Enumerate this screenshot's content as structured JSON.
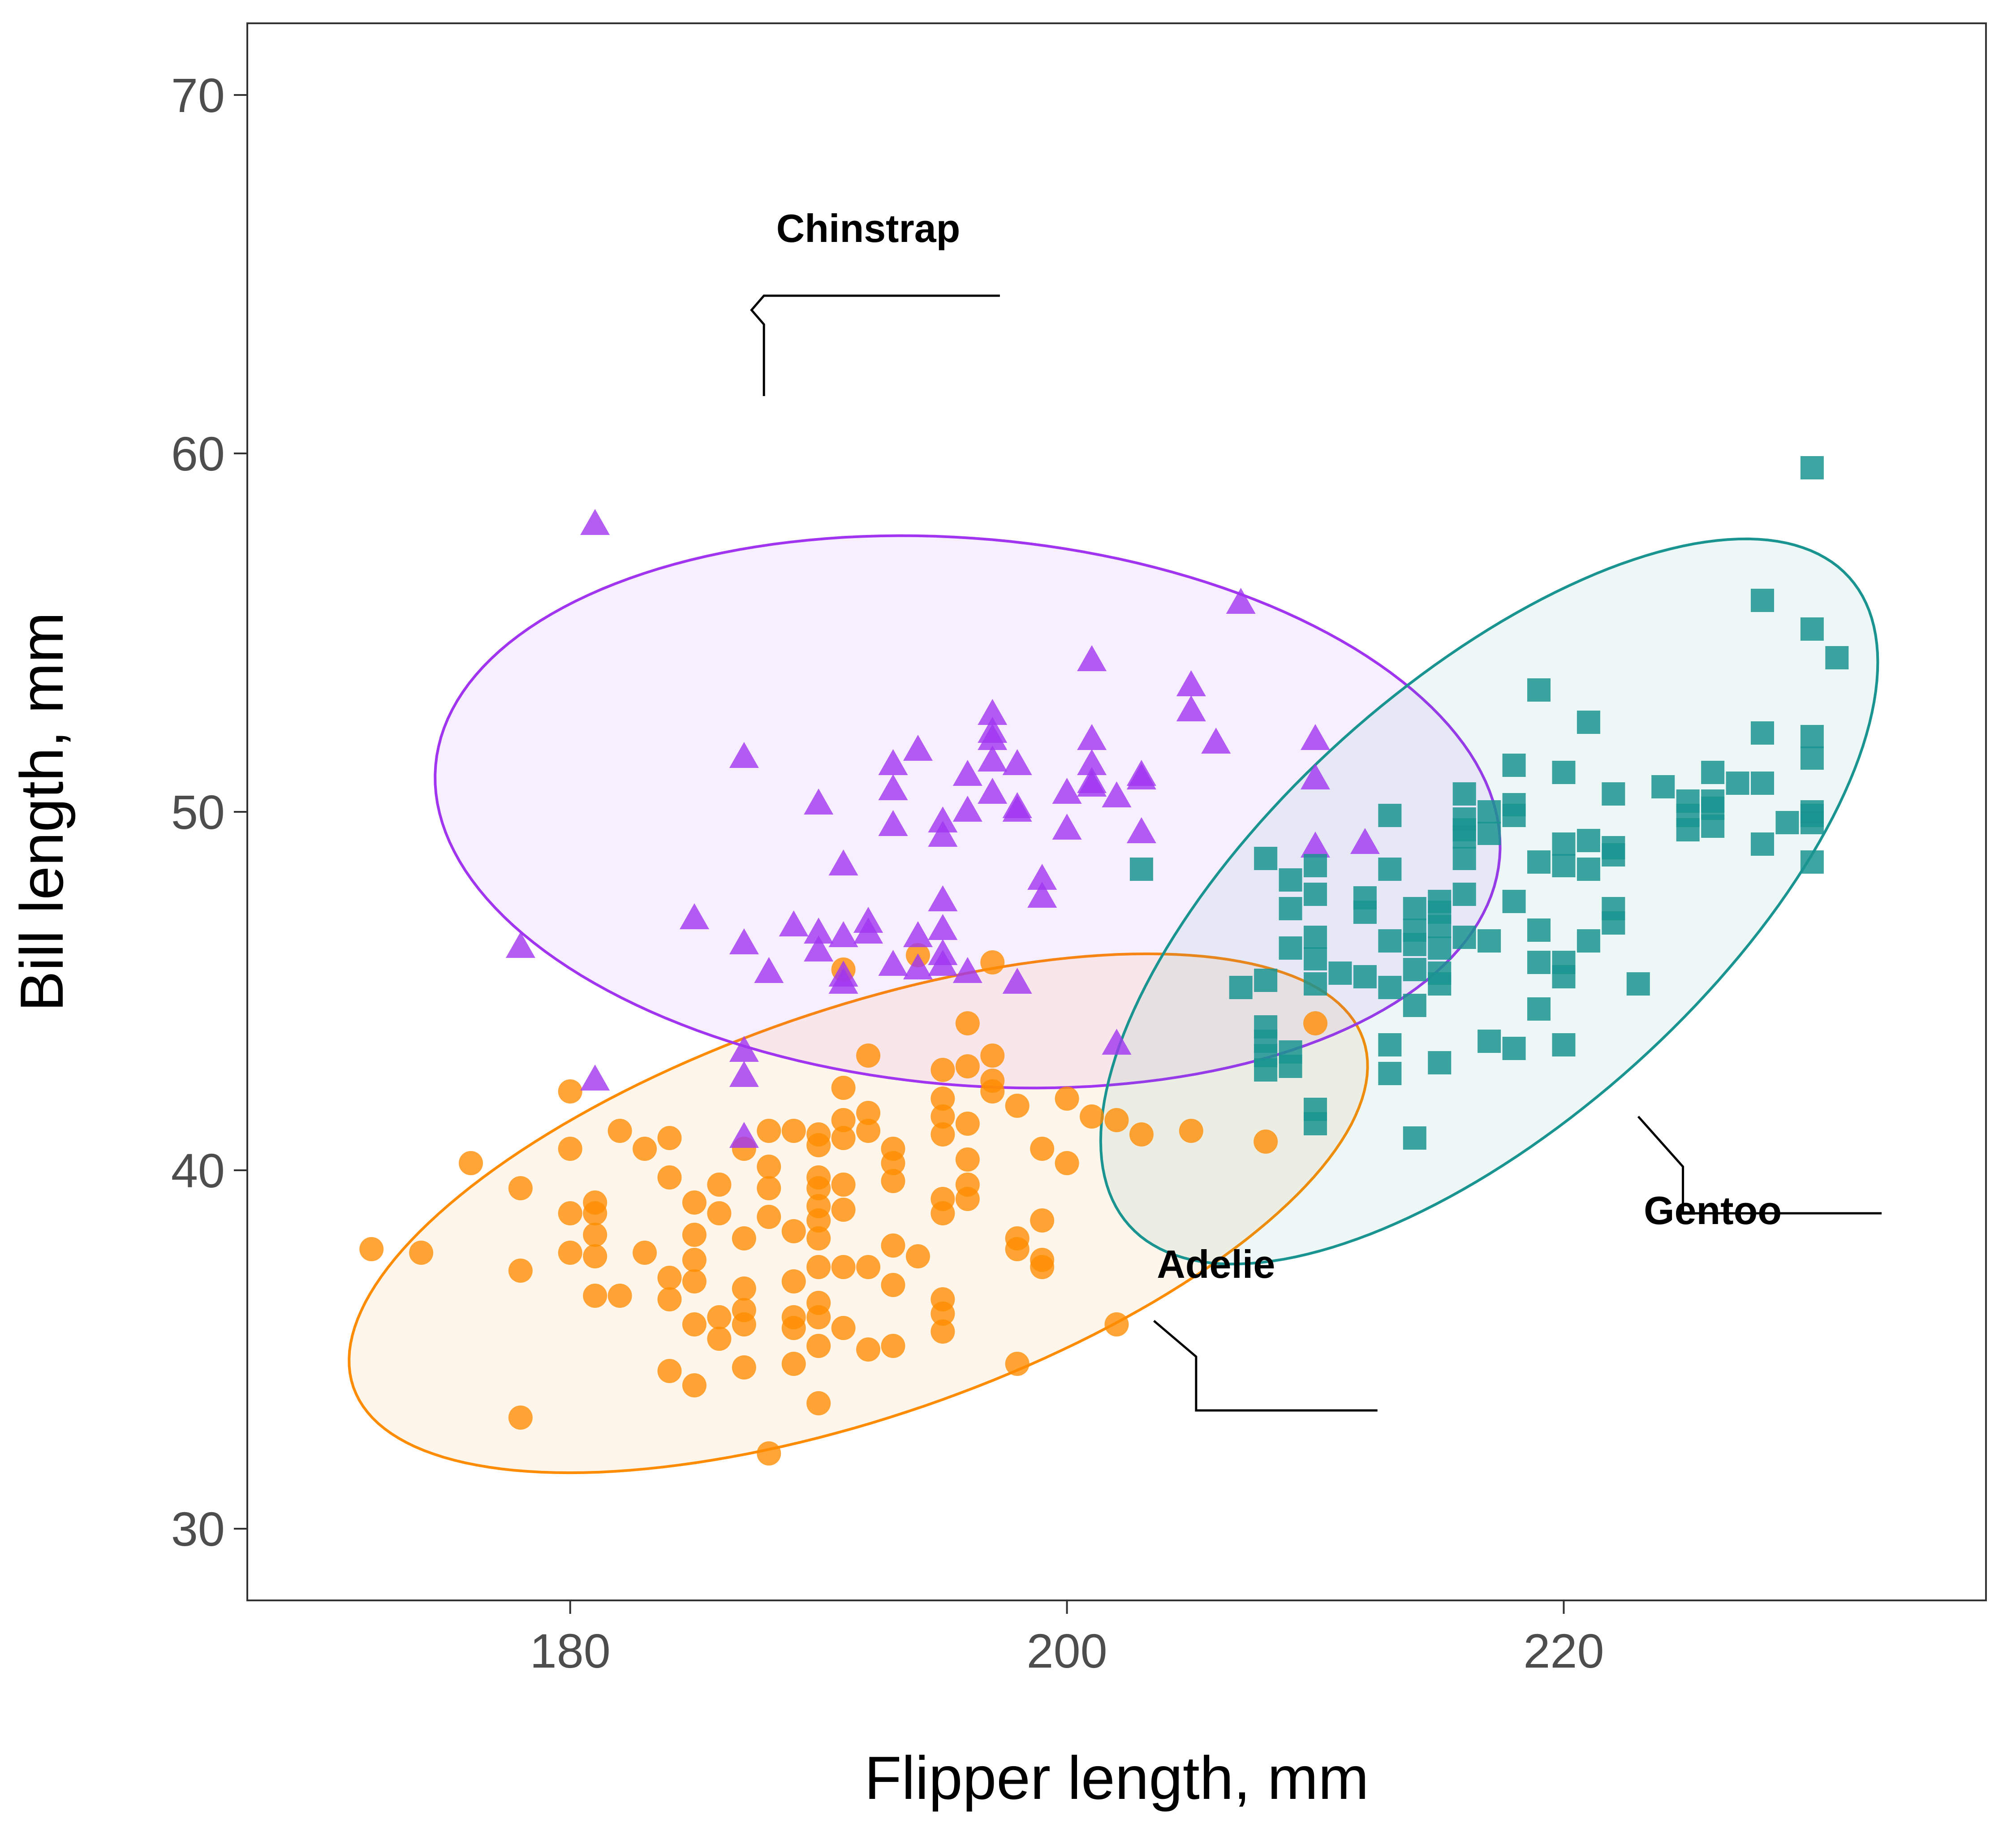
{
  "chart_data": {
    "type": "scatter",
    "title": "",
    "xlabel": "Flipper length, mm",
    "ylabel": "Bill length, mm",
    "xlim": [
      167,
      237
    ],
    "ylim": [
      28,
      72
    ],
    "xticks": [
      180,
      200,
      220
    ],
    "yticks": [
      30,
      40,
      50,
      60,
      70
    ],
    "grid": false,
    "legend": "none",
    "series": [
      {
        "name": "Adelie",
        "color": "#ff8c00",
        "marker": "circle",
        "ellipse": {
          "cx": 191.6,
          "cy": 38.8,
          "rx": 21.5,
          "ry": 8.2,
          "angle_deg": 19
        },
        "label_point": [
          206,
          37.0
        ],
        "label_leader": [
          [
            203.5,
            35.8
          ],
          [
            205.2,
            34.8
          ],
          [
            205.2,
            33.3
          ],
          [
            212.5,
            33.3
          ]
        ],
        "points": [
          [
            172,
            37.8
          ],
          [
            174,
            37.7
          ],
          [
            176,
            40.2
          ],
          [
            178,
            39.5
          ],
          [
            178,
            37.2
          ],
          [
            178,
            33.1
          ],
          [
            180,
            42.2
          ],
          [
            180,
            40.6
          ],
          [
            180,
            38.8
          ],
          [
            180,
            37.7
          ],
          [
            181,
            39.1
          ],
          [
            181,
            38.8
          ],
          [
            181,
            38.2
          ],
          [
            181,
            37.6
          ],
          [
            181,
            36.5
          ],
          [
            182,
            41.1
          ],
          [
            182,
            36.5
          ],
          [
            183,
            40.6
          ],
          [
            183,
            37.7
          ],
          [
            184,
            40.9
          ],
          [
            184,
            39.8
          ],
          [
            184,
            37.0
          ],
          [
            184,
            36.4
          ],
          [
            184,
            34.4
          ],
          [
            185,
            39.1
          ],
          [
            185,
            38.2
          ],
          [
            185,
            37.5
          ],
          [
            185,
            36.9
          ],
          [
            185,
            35.7
          ],
          [
            185,
            34.0
          ],
          [
            186,
            39.6
          ],
          [
            186,
            38.8
          ],
          [
            186,
            35.9
          ],
          [
            186,
            35.3
          ],
          [
            187,
            40.6
          ],
          [
            187,
            38.1
          ],
          [
            187,
            36.7
          ],
          [
            187,
            36.1
          ],
          [
            187,
            35.7
          ],
          [
            187,
            34.5
          ],
          [
            188,
            41.1
          ],
          [
            188,
            40.1
          ],
          [
            188,
            39.5
          ],
          [
            188,
            38.7
          ],
          [
            188,
            32.1
          ],
          [
            189,
            41.1
          ],
          [
            189,
            38.3
          ],
          [
            189,
            36.9
          ],
          [
            189,
            35.9
          ],
          [
            189,
            35.6
          ],
          [
            189,
            34.6
          ],
          [
            190,
            41.0
          ],
          [
            190,
            40.7
          ],
          [
            190,
            39.8
          ],
          [
            190,
            39.5
          ],
          [
            190,
            39.0
          ],
          [
            190,
            38.6
          ],
          [
            190,
            38.1
          ],
          [
            190,
            37.3
          ],
          [
            190,
            36.3
          ],
          [
            190,
            35.9
          ],
          [
            190,
            35.1
          ],
          [
            190,
            33.5
          ],
          [
            191,
            45.6
          ],
          [
            191,
            42.3
          ],
          [
            191,
            41.4
          ],
          [
            191,
            40.9
          ],
          [
            191,
            39.6
          ],
          [
            191,
            38.9
          ],
          [
            191,
            37.3
          ],
          [
            191,
            35.6
          ],
          [
            192,
            43.2
          ],
          [
            192,
            41.6
          ],
          [
            192,
            41.1
          ],
          [
            192,
            37.3
          ],
          [
            192,
            35.0
          ],
          [
            193,
            40.6
          ],
          [
            193,
            40.2
          ],
          [
            193,
            39.7
          ],
          [
            193,
            37.9
          ],
          [
            193,
            36.8
          ],
          [
            193,
            35.1
          ],
          [
            194,
            46.0
          ],
          [
            194,
            37.6
          ],
          [
            195,
            42.8
          ],
          [
            195,
            42.0
          ],
          [
            195,
            41.5
          ],
          [
            195,
            41.0
          ],
          [
            195,
            39.2
          ],
          [
            195,
            38.8
          ],
          [
            195,
            36.4
          ],
          [
            195,
            36.0
          ],
          [
            195,
            35.5
          ],
          [
            196,
            44.1
          ],
          [
            196,
            42.9
          ],
          [
            196,
            41.3
          ],
          [
            196,
            40.3
          ],
          [
            196,
            39.6
          ],
          [
            196,
            39.2
          ],
          [
            197,
            45.8
          ],
          [
            197,
            43.2
          ],
          [
            197,
            42.5
          ],
          [
            197,
            42.2
          ],
          [
            198,
            41.8
          ],
          [
            198,
            38.1
          ],
          [
            198,
            37.8
          ],
          [
            198,
            34.6
          ],
          [
            199,
            40.6
          ],
          [
            199,
            38.6
          ],
          [
            199,
            37.5
          ],
          [
            199,
            37.3
          ],
          [
            200,
            42.0
          ],
          [
            200,
            40.2
          ],
          [
            201,
            41.5
          ],
          [
            202,
            41.4
          ],
          [
            202,
            35.7
          ],
          [
            203,
            41.0
          ],
          [
            205,
            41.1
          ],
          [
            208,
            40.8
          ],
          [
            210,
            44.1
          ]
        ]
      },
      {
        "name": "Chinstrap",
        "color": "#a034f0",
        "marker": "triangle",
        "ellipse": {
          "cx": 196.0,
          "cy": 50.0,
          "rx": 21.5,
          "ry": 11.0,
          "angle_deg": -5
        },
        "label_point": [
          192.0,
          65.9
        ],
        "label_leader": [
          [
            197.3,
            64.4
          ],
          [
            187.8,
            64.4
          ],
          [
            187.3,
            64.0
          ],
          [
            187.8,
            63.6
          ],
          [
            187.8,
            61.6
          ]
        ],
        "points": [
          [
            178,
            46.2
          ],
          [
            181,
            58.0
          ],
          [
            181,
            42.5
          ],
          [
            185,
            47.0
          ],
          [
            187,
            51.5
          ],
          [
            187,
            46.3
          ],
          [
            187,
            43.3
          ],
          [
            187,
            42.6
          ],
          [
            187,
            40.9
          ],
          [
            188,
            45.5
          ],
          [
            189,
            46.8
          ],
          [
            190,
            50.2
          ],
          [
            190,
            46.6
          ],
          [
            190,
            46.1
          ],
          [
            191,
            48.5
          ],
          [
            191,
            46.5
          ],
          [
            191,
            45.4
          ],
          [
            191,
            45.2
          ],
          [
            192,
            46.9
          ],
          [
            192,
            46.6
          ],
          [
            193,
            51.3
          ],
          [
            193,
            50.6
          ],
          [
            193,
            49.6
          ],
          [
            193,
            45.7
          ],
          [
            194,
            51.7
          ],
          [
            194,
            46.5
          ],
          [
            194,
            45.6
          ],
          [
            195,
            49.7
          ],
          [
            195,
            49.3
          ],
          [
            195,
            47.5
          ],
          [
            195,
            46.7
          ],
          [
            195,
            46.0
          ],
          [
            195,
            45.7
          ],
          [
            196,
            51.0
          ],
          [
            196,
            50.0
          ],
          [
            196,
            45.5
          ],
          [
            197,
            52.7
          ],
          [
            197,
            52.2
          ],
          [
            197,
            52.0
          ],
          [
            197,
            51.4
          ],
          [
            197,
            50.5
          ],
          [
            198,
            51.3
          ],
          [
            198,
            50.1
          ],
          [
            198,
            50.0
          ],
          [
            198,
            45.2
          ],
          [
            199,
            48.1
          ],
          [
            199,
            47.6
          ],
          [
            200,
            50.5
          ],
          [
            200,
            49.5
          ],
          [
            201,
            54.2
          ],
          [
            201,
            52.0
          ],
          [
            201,
            51.3
          ],
          [
            201,
            50.8
          ],
          [
            201,
            50.7
          ],
          [
            202,
            50.4
          ],
          [
            202,
            43.5
          ],
          [
            203,
            51.0
          ],
          [
            203,
            50.9
          ],
          [
            203,
            49.4
          ],
          [
            205,
            53.5
          ],
          [
            205,
            52.8
          ],
          [
            206,
            51.9
          ],
          [
            207,
            55.8
          ],
          [
            210,
            52.0
          ],
          [
            210,
            50.9
          ],
          [
            210,
            49.0
          ],
          [
            212,
            49.1
          ]
        ]
      },
      {
        "name": "Gentoo",
        "color": "#1a9490",
        "marker": "square",
        "ellipse": {
          "cx": 217.0,
          "cy": 47.5,
          "rx": 19.5,
          "ry": 8.8,
          "angle_deg": 42
        },
        "label_point": [
          226.0,
          38.5
        ],
        "label_leader": [
          [
            223.0,
            41.5
          ],
          [
            224.8,
            40.1
          ],
          [
            224.8,
            38.8
          ],
          [
            232.8,
            38.8
          ]
        ],
        "points": [
          [
            203,
            48.4
          ],
          [
            207,
            45.1
          ],
          [
            208,
            48.7
          ],
          [
            208,
            45.3
          ],
          [
            208,
            44.0
          ],
          [
            208,
            43.6
          ],
          [
            208,
            43.2
          ],
          [
            208,
            42.8
          ],
          [
            209,
            48.1
          ],
          [
            209,
            47.3
          ],
          [
            209,
            46.2
          ],
          [
            209,
            43.3
          ],
          [
            209,
            42.9
          ],
          [
            210,
            48.5
          ],
          [
            210,
            47.7
          ],
          [
            210,
            46.5
          ],
          [
            210,
            45.9
          ],
          [
            210,
            45.2
          ],
          [
            210,
            41.7
          ],
          [
            210,
            41.3
          ],
          [
            211,
            45.5
          ],
          [
            212,
            47.6
          ],
          [
            212,
            47.2
          ],
          [
            212,
            45.4
          ],
          [
            213,
            49.9
          ],
          [
            213,
            48.4
          ],
          [
            213,
            46.4
          ],
          [
            213,
            45.1
          ],
          [
            213,
            43.5
          ],
          [
            213,
            42.7
          ],
          [
            214,
            47.3
          ],
          [
            214,
            46.7
          ],
          [
            214,
            46.3
          ],
          [
            214,
            45.6
          ],
          [
            214,
            44.6
          ],
          [
            214,
            40.9
          ],
          [
            215,
            47.5
          ],
          [
            215,
            47.2
          ],
          [
            215,
            46.8
          ],
          [
            215,
            46.2
          ],
          [
            215,
            45.5
          ],
          [
            215,
            45.2
          ],
          [
            215,
            43.0
          ],
          [
            216,
            50.5
          ],
          [
            216,
            49.8
          ],
          [
            216,
            49.5
          ],
          [
            216,
            49.3
          ],
          [
            216,
            48.7
          ],
          [
            216,
            47.7
          ],
          [
            216,
            46.5
          ],
          [
            217,
            50.0
          ],
          [
            217,
            49.4
          ],
          [
            217,
            46.4
          ],
          [
            217,
            43.6
          ],
          [
            218,
            51.3
          ],
          [
            218,
            50.2
          ],
          [
            218,
            49.9
          ],
          [
            218,
            47.5
          ],
          [
            218,
            43.4
          ],
          [
            219,
            53.4
          ],
          [
            219,
            48.6
          ],
          [
            219,
            46.7
          ],
          [
            219,
            45.8
          ],
          [
            219,
            44.5
          ],
          [
            220,
            51.1
          ],
          [
            220,
            49.1
          ],
          [
            220,
            48.5
          ],
          [
            220,
            45.8
          ],
          [
            220,
            45.4
          ],
          [
            220,
            43.5
          ],
          [
            221,
            52.5
          ],
          [
            221,
            49.2
          ],
          [
            221,
            48.4
          ],
          [
            221,
            46.4
          ],
          [
            222,
            50.5
          ],
          [
            222,
            49.0
          ],
          [
            222,
            48.8
          ],
          [
            222,
            47.3
          ],
          [
            222,
            46.9
          ],
          [
            223,
            45.2
          ],
          [
            224,
            50.7
          ],
          [
            225,
            50.3
          ],
          [
            225,
            49.9
          ],
          [
            225,
            49.5
          ],
          [
            226,
            51.1
          ],
          [
            226,
            50.3
          ],
          [
            226,
            50.1
          ],
          [
            226,
            49.6
          ],
          [
            227,
            50.8
          ],
          [
            228,
            55.9
          ],
          [
            228,
            52.2
          ],
          [
            228,
            50.8
          ],
          [
            228,
            49.1
          ],
          [
            229,
            49.7
          ],
          [
            230,
            59.6
          ],
          [
            230,
            55.1
          ],
          [
            230,
            52.1
          ],
          [
            230,
            51.5
          ],
          [
            230,
            50.0
          ],
          [
            230,
            49.9
          ],
          [
            230,
            49.7
          ],
          [
            230,
            48.6
          ],
          [
            231,
            54.3
          ]
        ]
      }
    ]
  }
}
